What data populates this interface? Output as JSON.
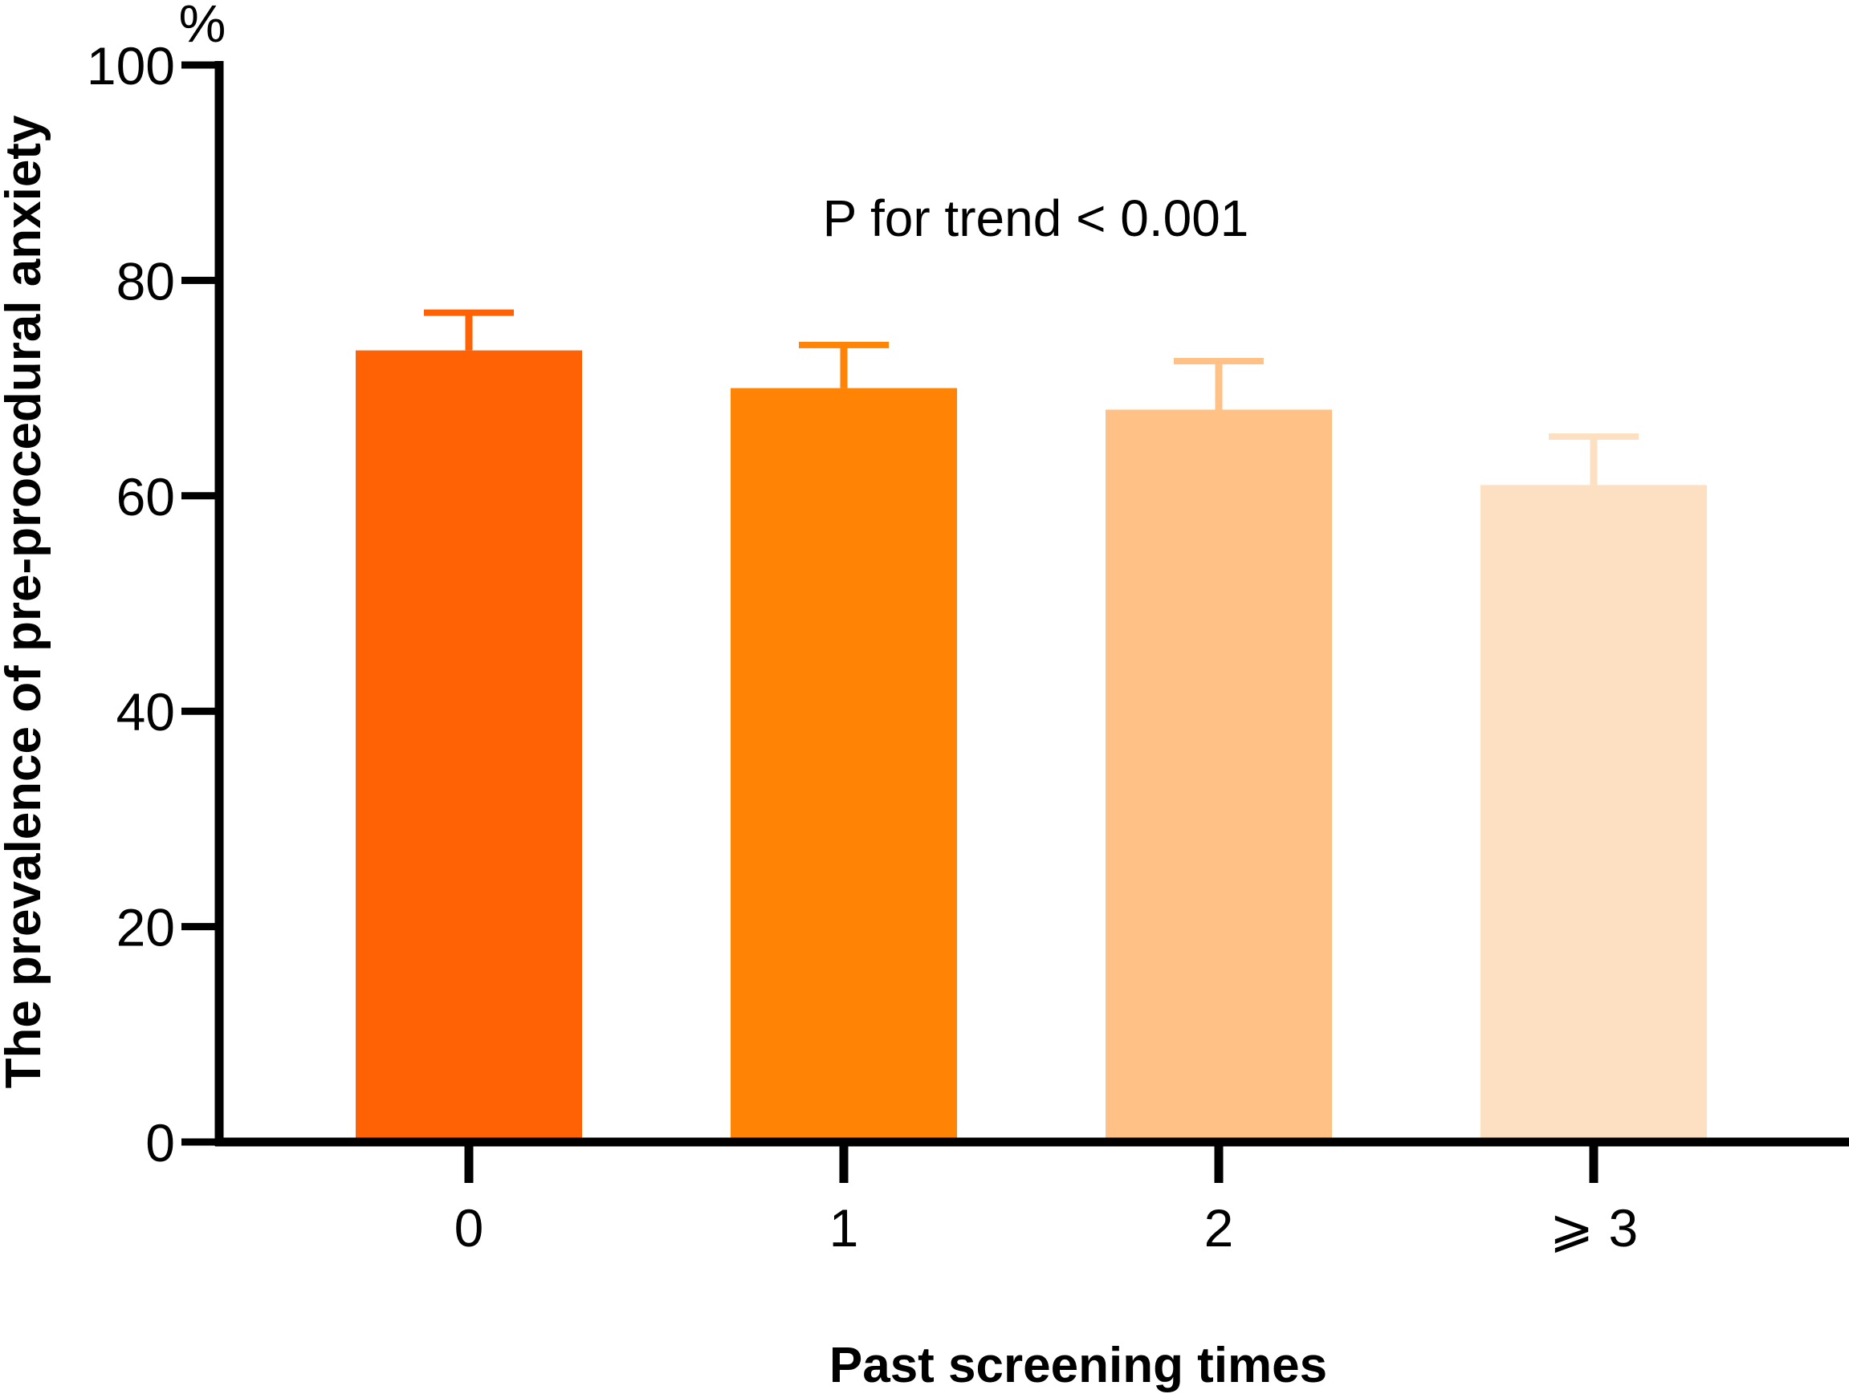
{
  "chart_data": {
    "type": "bar",
    "categories": [
      "0",
      "1",
      "2",
      "⩾ 3"
    ],
    "values": [
      73.5,
      70.0,
      68.0,
      61.0
    ],
    "error_upper": [
      77.0,
      74.0,
      72.5,
      65.5
    ],
    "colors": [
      "#FF6105",
      "#FF8305",
      "#FFC185",
      "#FDDFC1"
    ],
    "ylim": [
      0,
      100
    ],
    "yticks": [
      "0",
      "20",
      "40",
      "60",
      "80",
      "100"
    ],
    "y_unit": "%",
    "ylabel": "The prevalence of  pre-procedural anxiety",
    "xlabel": "Past screening times",
    "annotation": "P for trend < 0.001",
    "grid": false,
    "legend": "none"
  }
}
